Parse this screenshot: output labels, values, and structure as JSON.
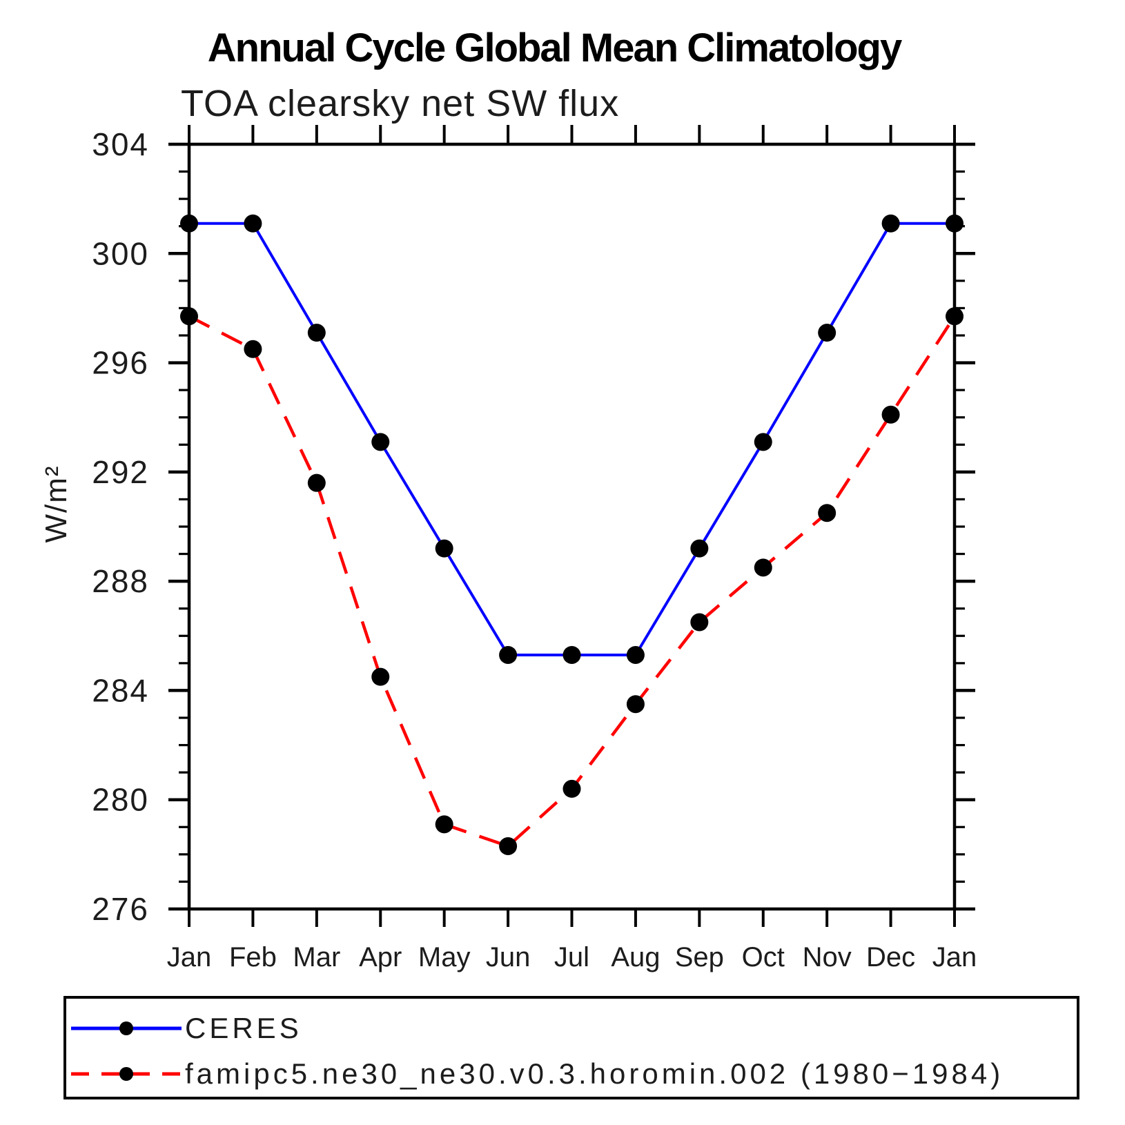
{
  "chart_data": {
    "type": "line",
    "title": "Annual Cycle Global Mean Climatology",
    "subtitle": "TOA clearsky net SW flux",
    "ylabel": "W/m²",
    "xlabel": "",
    "x_tick_labels": [
      "Jan",
      "Feb",
      "Mar",
      "Apr",
      "May",
      "Jun",
      "Jul",
      "Aug",
      "Sep",
      "Oct",
      "Nov",
      "Dec",
      "Jan"
    ],
    "ylim": [
      276,
      304
    ],
    "y_major_ticks": [
      276,
      280,
      284,
      288,
      292,
      296,
      300,
      304
    ],
    "y_minor_tick_step": 1,
    "grid": false,
    "axis_color": "#000000",
    "marker_color": "#000000",
    "series": [
      {
        "name": "CERES",
        "color": "#0000ff",
        "line_style": "solid",
        "marker": "filled-circle",
        "values": [
          301.1,
          301.1,
          297.1,
          293.1,
          289.2,
          285.3,
          285.3,
          285.3,
          289.2,
          293.1,
          297.1,
          301.1,
          301.1
        ]
      },
      {
        "name": "famipc5.ne30_ne30.v0.3.horomin.002 (1980−1984)",
        "color": "#ff0000",
        "line_style": "dashed",
        "marker": "filled-circle",
        "values": [
          297.7,
          296.5,
          291.6,
          284.5,
          279.1,
          278.3,
          280.4,
          283.5,
          286.5,
          288.5,
          290.5,
          294.1,
          297.7
        ]
      }
    ],
    "legend_position": "bottom"
  }
}
